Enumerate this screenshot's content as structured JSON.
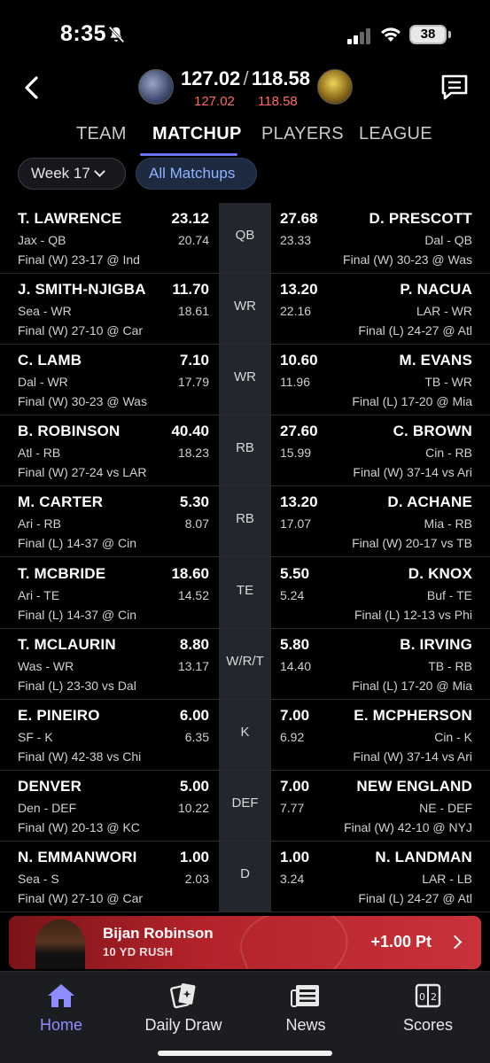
{
  "status": {
    "time": "8:35",
    "battery": "38"
  },
  "header": {
    "left_score": "127.02",
    "right_score": "118.58",
    "left_projected": "127.02",
    "right_projected": "118.58",
    "separator": "/"
  },
  "tabs": [
    {
      "label": "TEAM"
    },
    {
      "label": "MATCHUP"
    },
    {
      "label": "PLAYERS"
    },
    {
      "label": "LEAGUE"
    }
  ],
  "active_tab": "MATCHUP",
  "filters": {
    "week": "Week 17",
    "all_matchups": "All Matchups"
  },
  "rows": [
    {
      "pos": "QB",
      "left": {
        "name": "T. LAWRENCE",
        "team": "Jax - QB",
        "game": "Final (W) 23-17 @ Ind",
        "pts": "23.12",
        "proj": "20.74"
      },
      "right": {
        "name": "D. PRESCOTT",
        "team": "Dal - QB",
        "game": "Final (W) 30-23 @ Was",
        "pts": "27.68",
        "proj": "23.33"
      }
    },
    {
      "pos": "WR",
      "left": {
        "name": "J. SMITH-NJIGBA",
        "team": "Sea - WR",
        "game": "Final (W) 27-10 @ Car",
        "pts": "11.70",
        "proj": "18.61"
      },
      "right": {
        "name": "P. NACUA",
        "team": "LAR - WR",
        "game": "Final (L) 24-27 @ Atl",
        "pts": "13.20",
        "proj": "22.16"
      }
    },
    {
      "pos": "WR",
      "left": {
        "name": "C. LAMB",
        "team": "Dal - WR",
        "game": "Final (W) 30-23 @ Was",
        "pts": "7.10",
        "proj": "17.79"
      },
      "right": {
        "name": "M. EVANS",
        "team": "TB - WR",
        "game": "Final (L) 17-20 @ Mia",
        "pts": "10.60",
        "proj": "11.96"
      }
    },
    {
      "pos": "RB",
      "left": {
        "name": "B. ROBINSON",
        "team": "Atl - RB",
        "game": "Final (W) 27-24 vs LAR",
        "pts": "40.40",
        "proj": "18.23"
      },
      "right": {
        "name": "C. BROWN",
        "team": "Cin - RB",
        "game": "Final (W) 37-14 vs Ari",
        "pts": "27.60",
        "proj": "15.99"
      }
    },
    {
      "pos": "RB",
      "left": {
        "name": "M. CARTER",
        "team": "Ari - RB",
        "game": "Final (L) 14-37 @ Cin",
        "pts": "5.30",
        "proj": "8.07"
      },
      "right": {
        "name": "D. ACHANE",
        "team": "Mia - RB",
        "game": "Final (W) 20-17 vs TB",
        "pts": "13.20",
        "proj": "17.07"
      }
    },
    {
      "pos": "TE",
      "left": {
        "name": "T. MCBRIDE",
        "team": "Ari - TE",
        "game": "Final (L) 14-37 @ Cin",
        "pts": "18.60",
        "proj": "14.52"
      },
      "right": {
        "name": "D. KNOX",
        "team": "Buf - TE",
        "game": "Final (L) 12-13 vs Phi",
        "pts": "5.50",
        "proj": "5.24"
      }
    },
    {
      "pos": "W/R/T",
      "left": {
        "name": "T. MCLAURIN",
        "team": "Was - WR",
        "game": "Final (L) 23-30 vs Dal",
        "pts": "8.80",
        "proj": "13.17"
      },
      "right": {
        "name": "B. IRVING",
        "team": "TB - RB",
        "game": "Final (L) 17-20 @ Mia",
        "pts": "5.80",
        "proj": "14.40"
      }
    },
    {
      "pos": "K",
      "left": {
        "name": "E. PINEIRO",
        "team": "SF - K",
        "game": "Final (W) 42-38 vs Chi",
        "pts": "6.00",
        "proj": "6.35"
      },
      "right": {
        "name": "E. MCPHERSON",
        "team": "Cin - K",
        "game": "Final (W) 37-14 vs Ari",
        "pts": "7.00",
        "proj": "6.92"
      }
    },
    {
      "pos": "DEF",
      "left": {
        "name": "DENVER",
        "team": "Den - DEF",
        "game": "Final (W) 20-13 @ KC",
        "pts": "5.00",
        "proj": "10.22"
      },
      "right": {
        "name": "NEW ENGLAND",
        "team": "NE - DEF",
        "game": "Final (W) 42-10 @ NYJ",
        "pts": "7.00",
        "proj": "7.77"
      }
    },
    {
      "pos": "D",
      "left": {
        "name": "N. EMMANWORI",
        "team": "Sea - S",
        "game": "Final (W) 27-10 @ Car",
        "pts": "1.00",
        "proj": "2.03"
      },
      "right": {
        "name": "N. LANDMAN",
        "team": "LAR - LB",
        "game": "Final (L) 24-27 @ Atl",
        "pts": "1.00",
        "proj": "3.24"
      }
    }
  ],
  "banner": {
    "player": "Bijan Robinson",
    "event": "10 YD RUSH",
    "points": "+1.00 Pt"
  },
  "nav": [
    {
      "label": "Home",
      "icon": "home-icon"
    },
    {
      "label": "Daily Draw",
      "icon": "cards-icon"
    },
    {
      "label": "News",
      "icon": "newspaper-icon"
    },
    {
      "label": "Scores",
      "icon": "scoreboard-icon"
    }
  ],
  "colors": {
    "accent": "#8f8cff",
    "projected": "#ff6b5e",
    "banner": "#c9323a",
    "filter_active": "#8fb3ff"
  }
}
